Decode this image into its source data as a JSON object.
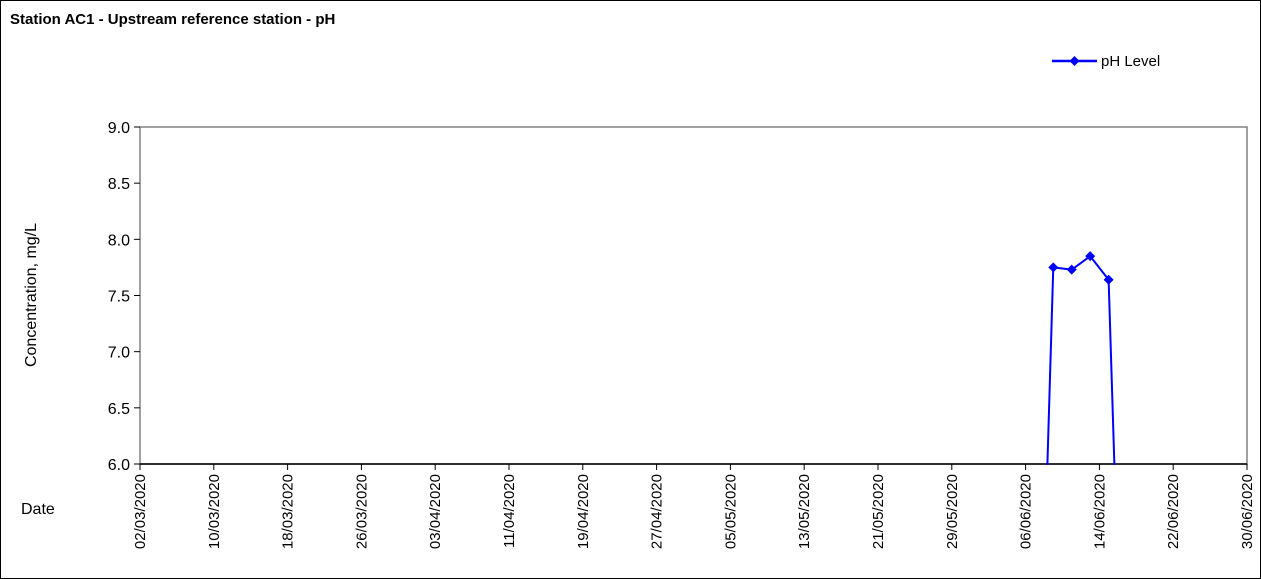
{
  "chart_data": {
    "type": "line",
    "title": "Station AC1 - Upstream reference station - pH",
    "xlabel": "Date",
    "ylabel": "Concentration, mg/L",
    "ylim": [
      6.0,
      9.0
    ],
    "xlim": [
      "2020-03-02",
      "2020-06-30"
    ],
    "y_ticks": [
      "6.0",
      "6.5",
      "7.0",
      "7.5",
      "8.0",
      "8.5",
      "9.0"
    ],
    "x_ticks": [
      "02/03/2020",
      "10/03/2020",
      "18/03/2020",
      "26/03/2020",
      "03/04/2020",
      "11/04/2020",
      "19/04/2020",
      "27/04/2020",
      "05/05/2020",
      "13/05/2020",
      "21/05/2020",
      "29/05/2020",
      "06/06/2020",
      "14/06/2020",
      "22/06/2020",
      "30/06/2020"
    ],
    "grid": false,
    "legend_position": "top-right",
    "series": [
      {
        "name": "pH Level",
        "color": "#0000ff",
        "marker": "diamond",
        "points": [
          {
            "x": "2020-06-08",
            "y": 5.0,
            "marker": false
          },
          {
            "x": "2020-06-09",
            "y": 7.75,
            "marker": true
          },
          {
            "x": "2020-06-11",
            "y": 7.73,
            "marker": true
          },
          {
            "x": "2020-06-13",
            "y": 7.85,
            "marker": true
          },
          {
            "x": "2020-06-15",
            "y": 7.64,
            "marker": true
          },
          {
            "x": "2020-06-16",
            "y": 5.0,
            "marker": false
          }
        ]
      }
    ]
  }
}
